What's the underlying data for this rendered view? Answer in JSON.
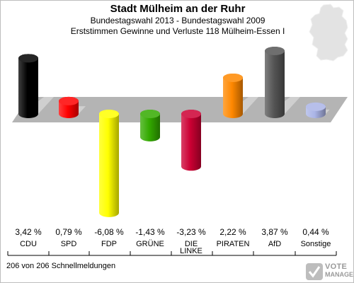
{
  "title": "Stadt Mülheim an der Ruhr",
  "subtitle": "Bundestagswahl 2013 - Bundestagswahl 2009",
  "subtitle2": "Erststimmen Gewinne und Verluste 118 Mülheim-Essen I",
  "footer": "206 von 206 Schnellmeldungen",
  "logo": {
    "line1": "VOTE",
    "line2": "MANAGER"
  },
  "icons": {
    "map": "germany-map-icon",
    "logo": "votemanager-logo-icon"
  },
  "chart_data": {
    "type": "bar",
    "categories": [
      "CDU",
      "SPD",
      "FDP",
      "GRÜNE",
      "DIE LINKE",
      "PIRATEN",
      "AfD",
      "Sonstige"
    ],
    "category_labels": [
      [
        "CDU"
      ],
      [
        "SPD"
      ],
      [
        "FDP"
      ],
      [
        "GRÜNE"
      ],
      [
        "DIE",
        "LINKE"
      ],
      [
        "PIRATEN"
      ],
      [
        "AfD"
      ],
      [
        "Sonstige"
      ]
    ],
    "values": [
      3.42,
      0.79,
      -6.08,
      -1.43,
      -3.23,
      2.22,
      3.87,
      0.44
    ],
    "value_labels": [
      "3,42 %",
      "0,79 %",
      "-6,08 %",
      "-1,43 %",
      "-3,23 %",
      "2,22 %",
      "3,87 %",
      "0,44 %"
    ],
    "colors": [
      "#000000",
      "#ff0000",
      "#ffff00",
      "#33aa00",
      "#cc0033",
      "#ff8800",
      "#555555",
      "#aab4e6"
    ],
    "unit": "%",
    "ylim": [
      -6.5,
      4.2
    ],
    "grid": false,
    "legend": "none"
  }
}
